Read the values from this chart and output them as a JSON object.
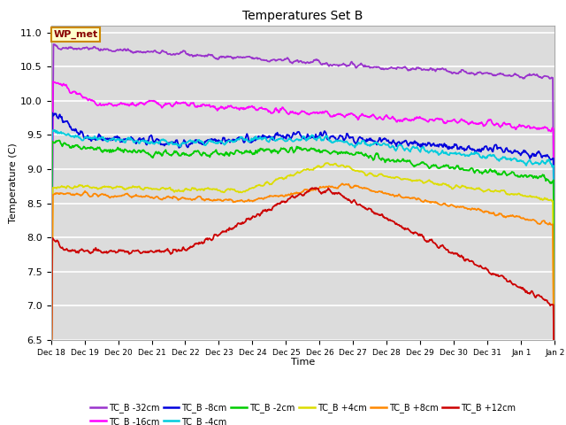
{
  "title": "Temperatures Set B",
  "xlabel": "Time",
  "ylabel": "Temperature (C)",
  "ylim": [
    6.5,
    11.1
  ],
  "background_color": "#ffffff",
  "plot_bg_color": "#dcdcdc",
  "grid_color": "#ffffff",
  "series": {
    "TC_B -32cm": {
      "color": "#9933cc",
      "lw": 1.3
    },
    "TC_B -16cm": {
      "color": "#ff00ff",
      "lw": 1.3
    },
    "TC_B -8cm": {
      "color": "#0000dd",
      "lw": 1.3
    },
    "TC_B -4cm": {
      "color": "#00ccdd",
      "lw": 1.3
    },
    "TC_B -2cm": {
      "color": "#00cc00",
      "lw": 1.3
    },
    "TC_B +4cm": {
      "color": "#dddd00",
      "lw": 1.3
    },
    "TC_B +8cm": {
      "color": "#ff8800",
      "lw": 1.3
    },
    "TC_B +12cm": {
      "color": "#cc0000",
      "lw": 1.3
    }
  },
  "wp_met_box": {
    "text": "WP_met",
    "facecolor": "#ffffcc",
    "edgecolor": "#cc8800",
    "textcolor": "#880000",
    "fontsize": 8
  },
  "xtick_labels": [
    "Dec 18",
    "Dec 19",
    "Dec 20",
    "Dec 21",
    "Dec 22",
    "Dec 23",
    "Dec 24",
    "Dec 25",
    "Dec 26",
    "Dec 27",
    "Dec 28",
    "Dec 29",
    "Dec 30",
    "Dec 31",
    "Jan 1",
    "Jan 2"
  ],
  "ytick_labels": [
    "6.5",
    "7.0",
    "7.5",
    "8.0",
    "8.5",
    "9.0",
    "9.5",
    "10.0",
    "10.5",
    "11.0"
  ],
  "legend_order": [
    "TC_B -32cm",
    "TC_B -16cm",
    "TC_B -8cm",
    "TC_B -4cm",
    "TC_B -2cm",
    "TC_B +4cm",
    "TC_B +8cm",
    "TC_B +12cm"
  ]
}
